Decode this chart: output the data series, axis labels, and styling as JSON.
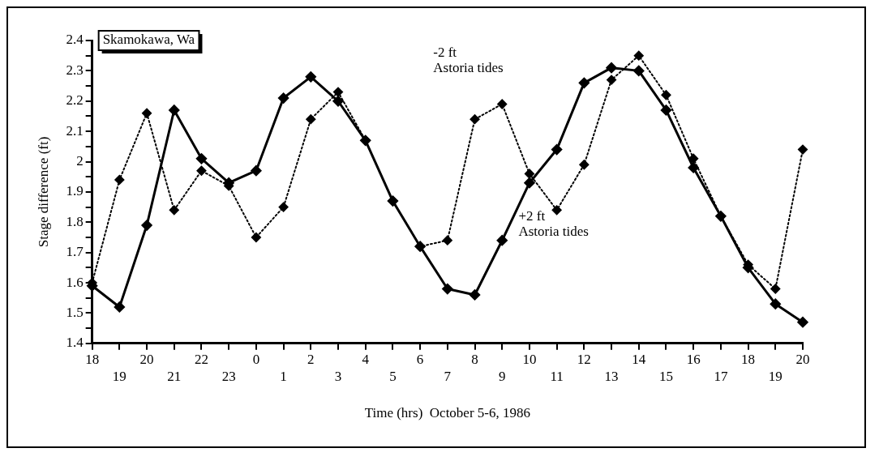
{
  "chart_data": {
    "type": "line",
    "title": "Skamokawa, Wa",
    "xlabel": "Time (hrs)  October 5-6, 1986",
    "ylabel": "Stage difference (ft)",
    "categories": [
      "18",
      "19",
      "20",
      "21",
      "22",
      "23",
      "0",
      "1",
      "2",
      "3",
      "4",
      "5",
      "6",
      "7",
      "8",
      "9",
      "10",
      "11",
      "12",
      "13",
      "14",
      "15",
      "16",
      "17",
      "18",
      "19",
      "20"
    ],
    "series": [
      {
        "name": "-2 ft Astoria tides",
        "color": "#000000",
        "line_style": "dotted",
        "values": [
          1.6,
          1.94,
          2.16,
          1.84,
          1.97,
          1.92,
          1.75,
          1.85,
          2.14,
          2.23,
          2.07,
          1.87,
          1.72,
          1.74,
          2.14,
          2.19,
          1.96,
          1.84,
          1.99,
          2.27,
          2.35,
          2.22,
          2.01,
          1.82,
          1.66,
          1.58,
          2.04
        ]
      },
      {
        "name": "+2 ft Astoria tides",
        "color": "#000000",
        "line_style": "solid",
        "values": [
          1.59,
          1.52,
          1.79,
          2.17,
          2.01,
          1.93,
          1.97,
          2.21,
          2.28,
          2.2,
          2.07,
          1.87,
          1.72,
          1.58,
          1.56,
          1.74,
          1.93,
          2.04,
          2.26,
          2.31,
          2.3,
          2.17,
          1.98,
          1.82,
          1.65,
          1.53,
          1.47
        ]
      }
    ],
    "ylim": [
      1.4,
      2.4
    ],
    "yticks": [
      1.4,
      {
        "value": 1.45,
        "label": null
      },
      1.5,
      {
        "value": 1.55,
        "label": null
      },
      1.6,
      {
        "value": 1.65,
        "label": null
      },
      1.7,
      {
        "value": 1.75,
        "label": null
      },
      1.8,
      {
        "value": 1.85,
        "label": null
      },
      1.9,
      {
        "value": 1.95,
        "label": null
      },
      2,
      {
        "value": 2.05,
        "label": null
      },
      2.1,
      {
        "value": 2.15,
        "label": null
      },
      2.2,
      {
        "value": 2.25,
        "label": null
      },
      2.3,
      {
        "value": 2.35,
        "label": null
      },
      2.4
    ],
    "marker": "diamond",
    "grid": false,
    "legend": false
  }
}
